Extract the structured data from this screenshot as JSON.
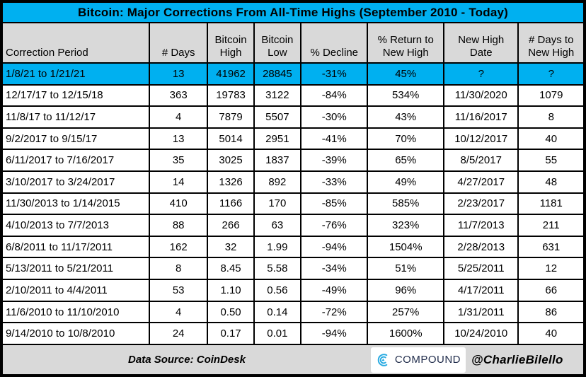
{
  "title": "Bitcoin: Major Corrections From All-Time Highs (September 2010 - Today)",
  "chart_data": {
    "type": "table",
    "title": "Bitcoin: Major Corrections From All-Time Highs (September 2010 - Today)",
    "columns": [
      "Correction Period",
      "# Days",
      "Bitcoin High",
      "Bitcoin Low",
      "% Decline",
      "% Return to New High",
      "New High Date",
      "# Days to New High"
    ],
    "columns_display": [
      "Correction Period",
      "# Days",
      "Bitcoin\nHigh",
      "Bitcoin\nLow",
      "% Decline",
      "% Return to\nNew High",
      "New High\nDate",
      "# Days to\nNew High"
    ],
    "rows": [
      [
        "1/8/21 to 1/21/21",
        "13",
        "41962",
        "28845",
        "-31%",
        "45%",
        "?",
        "?"
      ],
      [
        "12/17/17 to 12/15/18",
        "363",
        "19783",
        "3122",
        "-84%",
        "534%",
        "11/30/2020",
        "1079"
      ],
      [
        "11/8/17 to 11/12/17",
        "4",
        "7879",
        "5507",
        "-30%",
        "43%",
        "11/16/2017",
        "8"
      ],
      [
        "9/2/2017 to 9/15/17",
        "13",
        "5014",
        "2951",
        "-41%",
        "70%",
        "10/12/2017",
        "40"
      ],
      [
        "6/11/2017 to 7/16/2017",
        "35",
        "3025",
        "1837",
        "-39%",
        "65%",
        "8/5/2017",
        "55"
      ],
      [
        "3/10/2017 to 3/24/2017",
        "14",
        "1326",
        "892",
        "-33%",
        "49%",
        "4/27/2017",
        "48"
      ],
      [
        "11/30/2013 to 1/14/2015",
        "410",
        "1166",
        "170",
        "-85%",
        "585%",
        "2/23/2017",
        "1181"
      ],
      [
        "4/10/2013 to 7/7/2013",
        "88",
        "266",
        "63",
        "-76%",
        "323%",
        "11/7/2013",
        "211"
      ],
      [
        "6/8/2011 to 11/17/2011",
        "162",
        "32",
        "1.99",
        "-94%",
        "1504%",
        "2/28/2013",
        "631"
      ],
      [
        "5/13/2011 to 5/21/2011",
        "8",
        "8.45",
        "5.58",
        "-34%",
        "51%",
        "5/25/2011",
        "12"
      ],
      [
        "2/10/2011 to 4/4/2011",
        "53",
        "1.10",
        "0.56",
        "-49%",
        "96%",
        "4/17/2011",
        "66"
      ],
      [
        "11/6/2010 to 11/10/2010",
        "4",
        "0.50",
        "0.14",
        "-72%",
        "257%",
        "1/31/2011",
        "86"
      ],
      [
        "9/14/2010 to 10/8/2010",
        "24",
        "0.17",
        "0.01",
        "-94%",
        "1600%",
        "10/24/2010",
        "40"
      ]
    ],
    "highlighted_row_index": 0
  },
  "footer": {
    "data_source": "Data Source: CoinDesk",
    "logo_text": "COMPOUND",
    "handle": "@CharlieBilello"
  },
  "colors": {
    "highlight_cyan": "#00B0F0",
    "header_gray": "#D9D9D9",
    "border_black": "#000000",
    "logo_blue": "#29ABE2",
    "logo_navy": "#1F2B4A"
  }
}
